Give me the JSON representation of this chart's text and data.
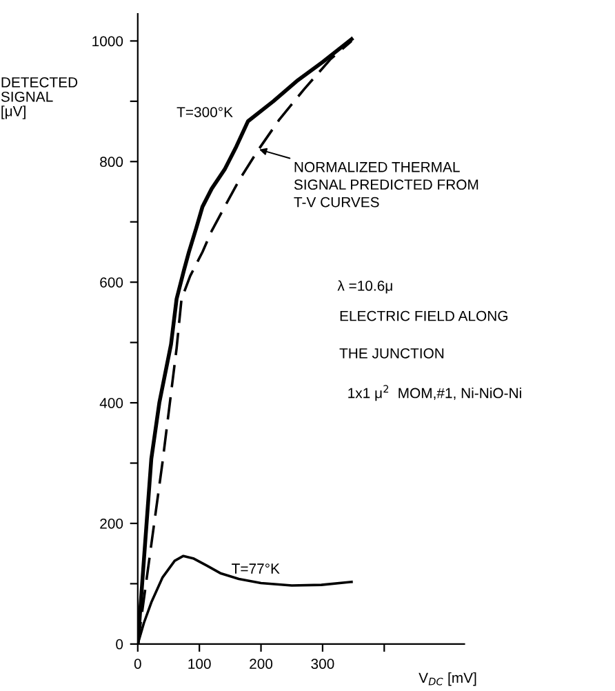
{
  "chart_data": {
    "type": "line",
    "xlabel": "V$_{DC}$ [mV]",
    "ylabel": "DETECTED\nSIGNAL\n[μV]",
    "xlim": [
      0,
      530
    ],
    "ylim": [
      0,
      1045
    ],
    "xticks": [
      0,
      100,
      200,
      300,
      {
        "value": 400,
        "label": null
      }
    ],
    "yticks": [
      0,
      {
        "value": 100,
        "label": null
      },
      200,
      {
        "value": 300,
        "label": null
      },
      400,
      {
        "value": 500,
        "label": null
      },
      600,
      {
        "value": 700,
        "label": null
      },
      800,
      {
        "value": 900,
        "label": null
      },
      1000
    ],
    "series": [
      {
        "name": "T=300°K",
        "color": "#000000",
        "line_style": "solid",
        "x": [
          0,
          10,
          22,
          35,
          54,
          63,
          75,
          83,
          95,
          105,
          120,
          141,
          160,
          179,
          220,
          260,
          300,
          347
        ],
        "values": [
          0,
          140,
          307,
          400,
          497,
          572,
          620,
          650,
          690,
          725,
          755,
          787,
          825,
          867,
          900,
          935,
          965,
          1003
        ]
      },
      {
        "color": "#000000",
        "line_style": "dashed",
        "x": [
          0,
          20,
          40,
          63,
          71,
          85,
          105,
          120,
          141,
          165,
          194,
          230,
          270,
          313,
          347
        ],
        "values": [
          0,
          150,
          300,
          490,
          572,
          610,
          650,
          685,
          725,
          770,
          817,
          870,
          920,
          970,
          1000
        ]
      },
      {
        "name": "T=77°K",
        "color": "#000000",
        "line_style": "solid",
        "x": [
          0,
          10,
          22,
          40,
          60,
          74,
          90,
          112,
          135,
          164,
          200,
          250,
          298,
          347
        ],
        "values": [
          0,
          35,
          69,
          110,
          138,
          146,
          142,
          130,
          117,
          108,
          101,
          97,
          98,
          103
        ]
      }
    ],
    "annotations": [
      {
        "text": "NORMALIZED THERMAL\nSIGNAL PREDICTED FROM\nT-V CURVES",
        "x": 197,
        "y": 820
      },
      "λ =10.6μ",
      "ELECTRIC FIELD ALONG",
      "THE JUNCTION",
      "1x1 μ$^{2}$  MOM,#1, Ni-NiO-Ni"
    ]
  }
}
